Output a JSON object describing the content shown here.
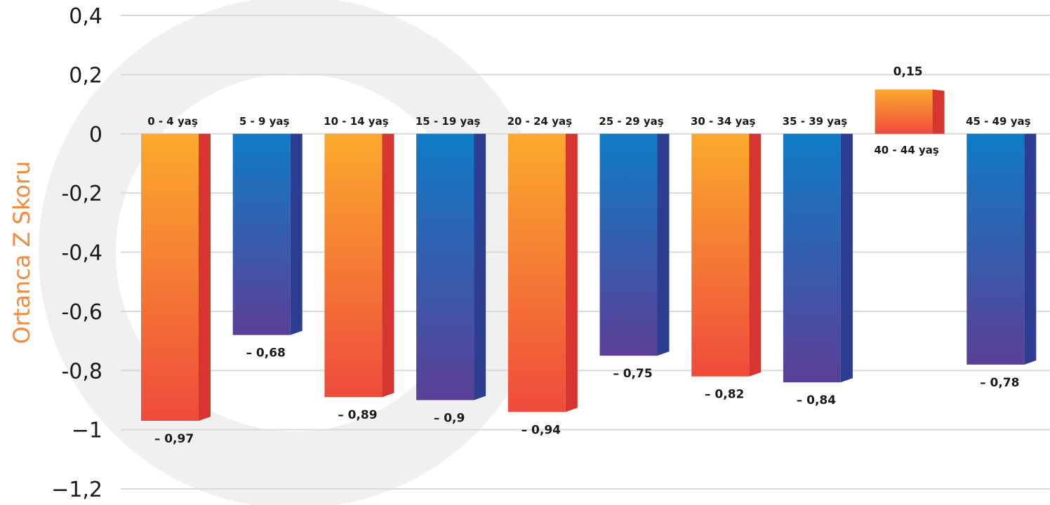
{
  "chart_data": {
    "type": "bar",
    "ylabel": "Ortanca Z Skoru",
    "ylim": [
      -1.2,
      0.4
    ],
    "yticks": [
      {
        "value": 0.4,
        "label": "0,4"
      },
      {
        "value": 0.2,
        "label": "0,2"
      },
      {
        "value": 0.0,
        "label": "0"
      },
      {
        "value": -0.2,
        "label": "-0,2"
      },
      {
        "value": -0.4,
        "label": "-0,4"
      },
      {
        "value": -0.6,
        "label": "-0,6"
      },
      {
        "value": -0.8,
        "label": "-0,8"
      },
      {
        "value": -1.0,
        "label": "−1"
      },
      {
        "value": -1.2,
        "label": "−1,2"
      }
    ],
    "grid": true,
    "categories": [
      "0 - 4 yaş",
      "5 - 9 yaş",
      "10 - 14 yaş",
      "15 - 19 yaş",
      "20 - 24 yaş",
      "25 - 29 yaş",
      "30 - 34 yaş",
      "35 - 39 yaş",
      "40 - 44 yaş",
      "45 - 49 yaş"
    ],
    "values": [
      -0.97,
      -0.68,
      -0.89,
      -0.9,
      -0.94,
      -0.75,
      -0.82,
      -0.84,
      0.15,
      -0.78
    ],
    "value_labels": [
      "– 0,97",
      "– 0,68",
      "– 0,89",
      "– 0,9",
      "– 0,94",
      "– 0,75",
      "– 0,82",
      "– 0,84",
      "0,15",
      "– 0,78"
    ],
    "bar_colors": [
      "orange",
      "blue",
      "orange",
      "blue",
      "orange",
      "blue",
      "orange",
      "blue",
      "orange",
      "blue"
    ]
  },
  "colors": {
    "ylabel": "#f58a3c",
    "grid": "#d9d9d9",
    "watermark": "#f0f0f0",
    "orange_top": "#fbaa2c",
    "orange_bottom": "#ef4b3c",
    "orange_side": "#d7352f",
    "blue_top": "#0f7cc6",
    "blue_bottom": "#5b3f96",
    "blue_side": "#2c3d92"
  }
}
